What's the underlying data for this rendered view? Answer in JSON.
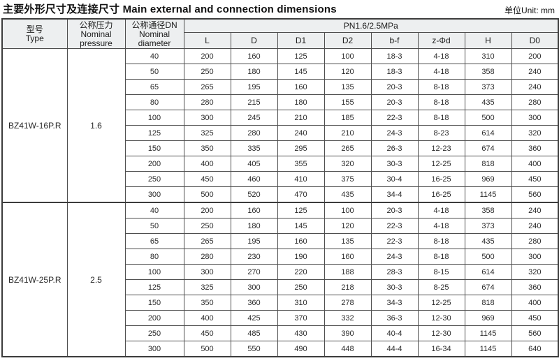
{
  "title": "主要外形尺寸及连接尺寸 Main external and connection dimensions",
  "unit_label": "单位Unit: mm",
  "header": {
    "type": {
      "zh": "型号",
      "en": "Type"
    },
    "pressure": {
      "zh": "公称压力",
      "en_line1": "Nominal",
      "en_line2": "pressure"
    },
    "diameter": {
      "zh": "公称通径DN",
      "en_line1": "Nominal",
      "en_line2": "diameter"
    },
    "pn_span": "PN1.6/2.5MPa",
    "dims": [
      "L",
      "D",
      "D1",
      "D2",
      "b-f",
      "z-Φd",
      "H",
      "D0"
    ]
  },
  "groups": [
    {
      "type": "BZ41W-16P.R",
      "pressure": "1.6",
      "rows": [
        [
          "40",
          "200",
          "160",
          "125",
          "100",
          "18-3",
          "4-18",
          "310",
          "200"
        ],
        [
          "50",
          "250",
          "180",
          "145",
          "120",
          "18-3",
          "4-18",
          "358",
          "240"
        ],
        [
          "65",
          "265",
          "195",
          "160",
          "135",
          "20-3",
          "8-18",
          "373",
          "240"
        ],
        [
          "80",
          "280",
          "215",
          "180",
          "155",
          "20-3",
          "8-18",
          "435",
          "280"
        ],
        [
          "100",
          "300",
          "245",
          "210",
          "185",
          "22-3",
          "8-18",
          "500",
          "300"
        ],
        [
          "125",
          "325",
          "280",
          "240",
          "210",
          "24-3",
          "8-23",
          "614",
          "320"
        ],
        [
          "150",
          "350",
          "335",
          "295",
          "265",
          "26-3",
          "12-23",
          "674",
          "360"
        ],
        [
          "200",
          "400",
          "405",
          "355",
          "320",
          "30-3",
          "12-25",
          "818",
          "400"
        ],
        [
          "250",
          "450",
          "460",
          "410",
          "375",
          "30-4",
          "16-25",
          "969",
          "450"
        ],
        [
          "300",
          "500",
          "520",
          "470",
          "435",
          "34-4",
          "16-25",
          "1145",
          "560"
        ]
      ]
    },
    {
      "type": "BZ41W-25P.R",
      "pressure": "2.5",
      "rows": [
        [
          "40",
          "200",
          "160",
          "125",
          "100",
          "20-3",
          "4-18",
          "358",
          "240"
        ],
        [
          "50",
          "250",
          "180",
          "145",
          "120",
          "22-3",
          "4-18",
          "373",
          "240"
        ],
        [
          "65",
          "265",
          "195",
          "160",
          "135",
          "22-3",
          "8-18",
          "435",
          "280"
        ],
        [
          "80",
          "280",
          "230",
          "190",
          "160",
          "24-3",
          "8-18",
          "500",
          "300"
        ],
        [
          "100",
          "300",
          "270",
          "220",
          "188",
          "28-3",
          "8-15",
          "614",
          "320"
        ],
        [
          "125",
          "325",
          "300",
          "250",
          "218",
          "30-3",
          "8-25",
          "674",
          "360"
        ],
        [
          "150",
          "350",
          "360",
          "310",
          "278",
          "34-3",
          "12-25",
          "818",
          "400"
        ],
        [
          "200",
          "400",
          "425",
          "370",
          "332",
          "36-3",
          "12-30",
          "969",
          "450"
        ],
        [
          "250",
          "450",
          "485",
          "430",
          "390",
          "40-4",
          "12-30",
          "1145",
          "560"
        ],
        [
          "300",
          "500",
          "550",
          "490",
          "448",
          "44-4",
          "16-34",
          "1145",
          "640"
        ]
      ]
    }
  ],
  "colors": {
    "header_bg": "#edeff0",
    "grid_line": "#4e4e4e",
    "outer_border": "#3c3c3c",
    "text": "#2a2a2a"
  }
}
